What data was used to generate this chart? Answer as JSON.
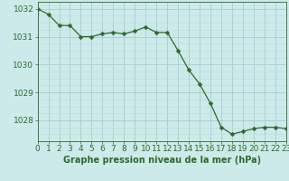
{
  "x": [
    0,
    1,
    2,
    3,
    4,
    5,
    6,
    7,
    8,
    9,
    10,
    11,
    12,
    13,
    14,
    15,
    16,
    17,
    18,
    19,
    20,
    21,
    22,
    23
  ],
  "y": [
    1032.0,
    1031.8,
    1031.4,
    1031.4,
    1031.0,
    1031.0,
    1031.1,
    1031.15,
    1031.1,
    1031.2,
    1031.35,
    1031.15,
    1031.15,
    1030.5,
    1029.8,
    1029.3,
    1028.6,
    1027.75,
    1027.5,
    1027.6,
    1027.7,
    1027.75,
    1027.75,
    1027.7
  ],
  "line_color": "#2d6a2d",
  "marker": "D",
  "marker_size": 2.5,
  "bg_color": "#cceaea",
  "grid_major_color": "#aacccc",
  "grid_minor_color": "#bbdddd",
  "xlabel": "Graphe pression niveau de la mer (hPa)",
  "xlabel_fontsize": 7,
  "tick_label_fontsize": 6.5,
  "ylim": [
    1027.25,
    1032.25
  ],
  "yticks": [
    1028,
    1029,
    1030,
    1031,
    1032
  ],
  "xlim": [
    0,
    23
  ],
  "xticks": [
    0,
    1,
    2,
    3,
    4,
    5,
    6,
    7,
    8,
    9,
    10,
    11,
    12,
    13,
    14,
    15,
    16,
    17,
    18,
    19,
    20,
    21,
    22,
    23
  ]
}
